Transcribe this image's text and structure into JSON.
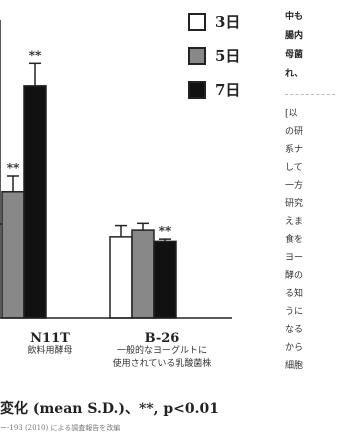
{
  "chart_data": {
    "type": "bar",
    "categories": [
      {
        "name": "N11T",
        "sub1": "飲料用酵母",
        "sub2": ""
      },
      {
        "name": "B-26",
        "sub1": "一般的なヨーグルトに",
        "sub2": "使用されている乳酸菌株"
      }
    ],
    "series": [
      {
        "name": "3日",
        "color": "#ffffff",
        "values": [
          null,
          3.6
        ],
        "errors": [
          null,
          0.5
        ]
      },
      {
        "name": "5日",
        "color": "#888888",
        "values": [
          5.6,
          3.9
        ],
        "errors": [
          0.7,
          0.3
        ]
      },
      {
        "name": "7日",
        "color": "#111111",
        "values": [
          10.3,
          3.4
        ],
        "errors": [
          1.0,
          0.1
        ]
      }
    ],
    "significance": [
      {
        "category": 0,
        "series": 1,
        "label": "**"
      },
      {
        "category": 0,
        "series": 2,
        "label": "**"
      },
      {
        "category": 1,
        "series": 2,
        "label": "**"
      }
    ],
    "ylim": [
      0,
      13
    ],
    "legend_position": "top-right",
    "caption": "変化 (mean S.D.)、**, p<0.01",
    "source_note": "ー-193 (2010) による調査報告を改編"
  },
  "colors": {
    "axis": "#222222",
    "text": "#222222"
  },
  "sidebar": {
    "top_lines": [
      "中も",
      "腸内",
      "母菌",
      "れ、"
    ],
    "low_lines": [
      "[以",
      "の研",
      "系ナ",
      "して",
      "一方",
      "研究",
      "えま",
      "食を",
      "ヨー",
      "酵の",
      "る知",
      "うに",
      "なる",
      "から",
      "細胞"
    ]
  }
}
